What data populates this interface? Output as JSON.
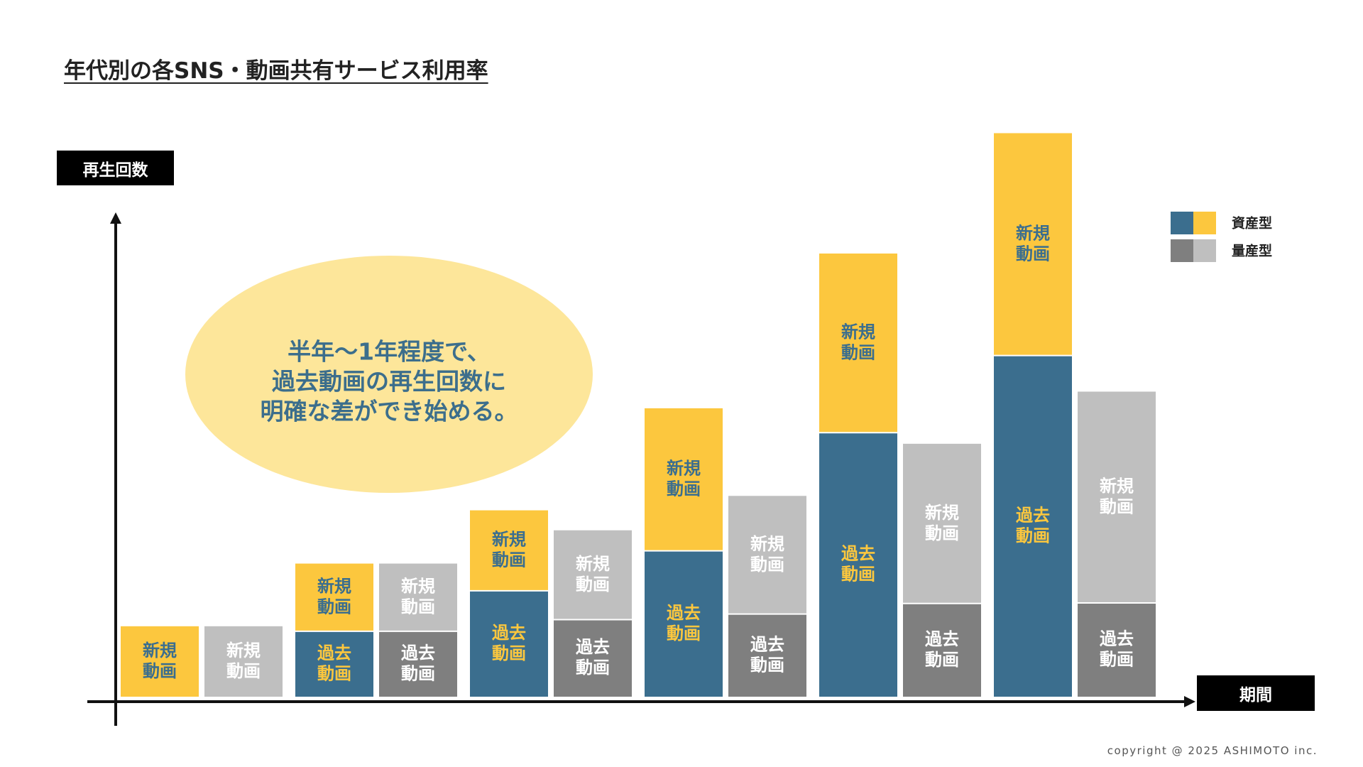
{
  "title": "年代別の各SNS・動画共有サービス利用率",
  "colors": {
    "asset_new": "#fcc73e",
    "asset_past": "#3b6e8e",
    "volume_new": "#bfbfbf",
    "volume_past": "#7f7f7f",
    "callout_fill": "#fde69a",
    "callout_text": "#3c6e8c",
    "asset_label_on_yellow": "#3b6e8e",
    "asset_label_on_blue": "#fcc73e",
    "volume_label": "#ffffff"
  },
  "callout": {
    "lines": [
      "半年〜1年程度で、",
      "過去動画の再生回数に",
      "明確な差ができ始める。"
    ]
  },
  "copyright": "copyright @ 2025 ASHIMOTO inc.",
  "chart_data": {
    "type": "bar",
    "stacked": true,
    "xlabel": "期間",
    "ylabel": "再生回数",
    "legend_position": "top-right",
    "legend": [
      {
        "name": "資産型",
        "colors": [
          "#3b6e8e",
          "#fcc73e"
        ]
      },
      {
        "name": "量産型",
        "colors": [
          "#7f7f7f",
          "#bfbfbf"
        ]
      }
    ],
    "segment_labels": {
      "past": "過去\n動画",
      "new": "新規\n動画"
    },
    "ylim": [
      0,
      100
    ],
    "groups": [
      {
        "asset": {
          "past": 0,
          "new": 12.7
        },
        "volume": {
          "past": 0,
          "new": 12.7
        }
      },
      {
        "asset": {
          "past": 11.8,
          "new": 12.2
        },
        "volume": {
          "past": 11.8,
          "new": 12.2
        }
      },
      {
        "asset": {
          "past": 19.1,
          "new": 14.5
        },
        "volume": {
          "past": 13.9,
          "new": 16.1
        }
      },
      {
        "asset": {
          "past": 26.3,
          "new": 25.7
        },
        "volume": {
          "past": 14.9,
          "new": 21.3
        }
      },
      {
        "asset": {
          "past": 47.6,
          "new": 32.3
        },
        "volume": {
          "past": 16.8,
          "new": 28.8
        }
      },
      {
        "asset": {
          "past": 61.5,
          "new": 40.1
        },
        "volume": {
          "past": 16.9,
          "new": 38.1
        }
      }
    ]
  }
}
